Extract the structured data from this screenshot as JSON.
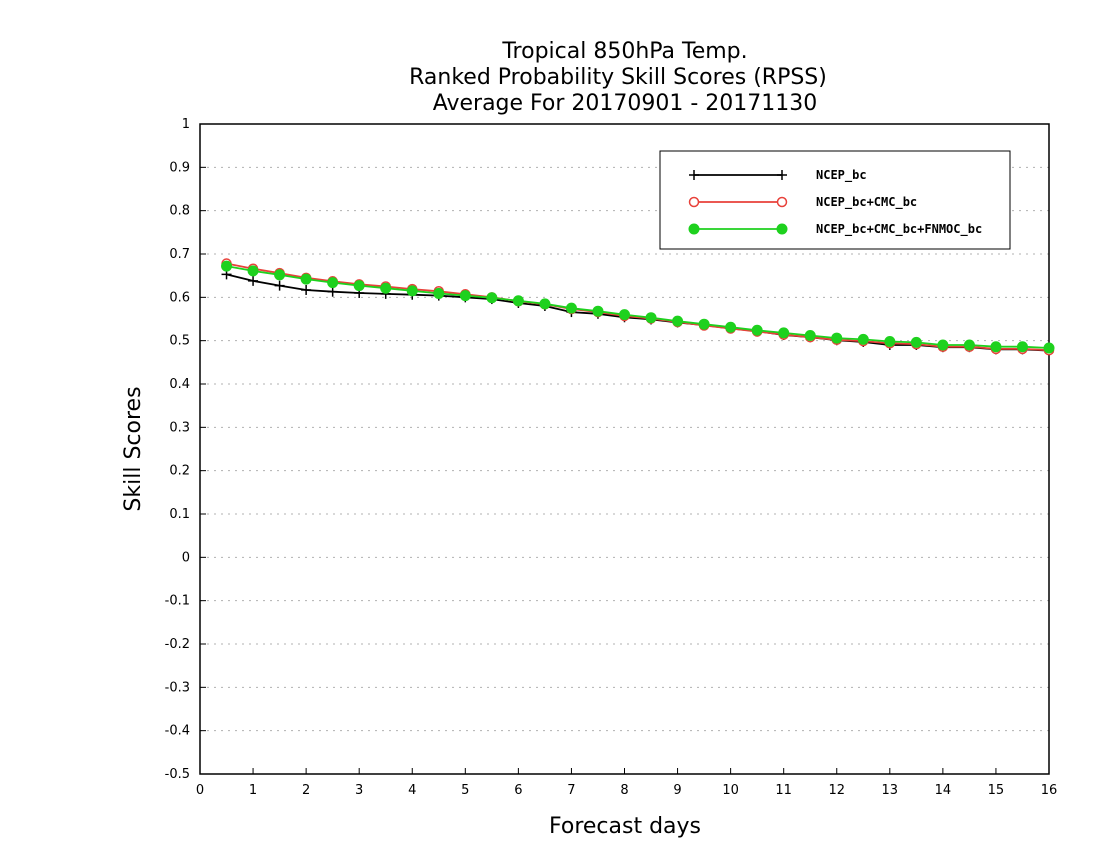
{
  "chart_data": {
    "type": "line",
    "title": [
      "Tropical 850hPa Temp.",
      "Ranked Probability Skill Scores (RPSS)",
      "Average For 20170901 - 20171130"
    ],
    "xlabel": "Forecast days",
    "ylabel": "Skill Scores",
    "xlim": [
      0,
      16
    ],
    "ylim": [
      -0.5,
      1
    ],
    "xticks": [
      "0",
      "1",
      "2",
      "3",
      "4",
      "5",
      "6",
      "7",
      "8",
      "9",
      "10",
      "11",
      "12",
      "13",
      "14",
      "15",
      "16"
    ],
    "yticks": [
      "-0.5",
      "-0.4",
      "-0.3",
      "-0.2",
      "-0.1",
      "0",
      "0.1",
      "0.2",
      "0.3",
      "0.4",
      "0.5",
      "0.6",
      "0.7",
      "0.8",
      "0.9",
      "1"
    ],
    "grid": true,
    "legend_position": "top-right",
    "x": [
      0.5,
      1,
      1.5,
      2,
      2.5,
      3,
      3.5,
      4,
      4.5,
      5,
      5.5,
      6,
      6.5,
      7,
      7.5,
      8,
      8.5,
      9,
      9.5,
      10,
      10.5,
      11,
      11.5,
      12,
      12.5,
      13,
      13.5,
      14,
      14.5,
      15,
      15.5,
      16
    ],
    "series": [
      {
        "name": "NCEP_bc",
        "color": "#000000",
        "marker": "plus",
        "values": [
          0.653,
          0.638,
          0.627,
          0.617,
          0.613,
          0.61,
          0.608,
          0.606,
          0.604,
          0.6,
          0.596,
          0.587,
          0.58,
          0.566,
          0.562,
          0.554,
          0.549,
          0.542,
          0.536,
          0.528,
          0.522,
          0.513,
          0.508,
          0.501,
          0.497,
          0.49,
          0.49,
          0.485,
          0.485,
          0.48,
          0.48,
          0.477
        ]
      },
      {
        "name": "NCEP_bc+CMC_bc",
        "color": "#e8413a",
        "marker": "circle-open",
        "values": [
          0.678,
          0.666,
          0.656,
          0.645,
          0.637,
          0.63,
          0.625,
          0.619,
          0.614,
          0.607,
          0.6,
          0.591,
          0.584,
          0.573,
          0.566,
          0.557,
          0.551,
          0.543,
          0.535,
          0.528,
          0.521,
          0.514,
          0.508,
          0.502,
          0.499,
          0.494,
          0.492,
          0.486,
          0.486,
          0.481,
          0.481,
          0.478
        ]
      },
      {
        "name": "NCEP_bc+CMC_bc+FNMOC_bc",
        "color": "#1ed11e",
        "marker": "circle-filled",
        "values": [
          0.672,
          0.661,
          0.652,
          0.642,
          0.634,
          0.627,
          0.621,
          0.615,
          0.609,
          0.604,
          0.599,
          0.592,
          0.585,
          0.575,
          0.568,
          0.56,
          0.553,
          0.545,
          0.538,
          0.531,
          0.524,
          0.518,
          0.512,
          0.506,
          0.503,
          0.498,
          0.496,
          0.49,
          0.49,
          0.486,
          0.486,
          0.483
        ]
      }
    ]
  }
}
